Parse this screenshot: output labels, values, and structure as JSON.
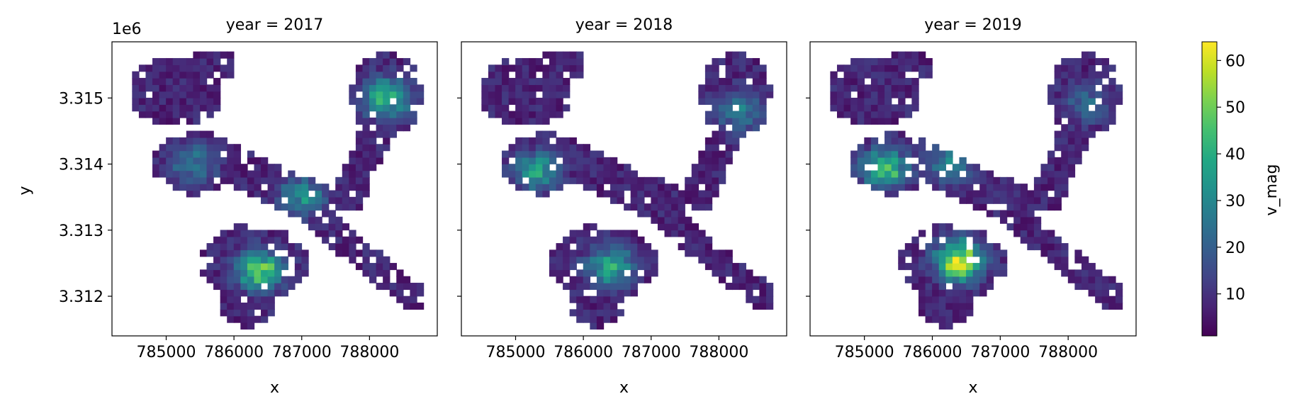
{
  "figure": {
    "offset_label": "1e6",
    "ylabel": "y",
    "xlabel": "x",
    "colorbar_label": "v_mag",
    "colorbar_ticks": [
      10,
      20,
      30,
      40,
      50,
      60
    ],
    "colorbar_range": [
      1,
      64
    ],
    "colormap": "viridis"
  },
  "chart_data": [
    {
      "type": "heatmap",
      "title": "year = 2017",
      "x_ticks": [
        "785000",
        "786000",
        "787000",
        "788000"
      ],
      "y_ticks": [
        "3.312",
        "3.313",
        "3.314",
        "3.315"
      ],
      "xlim": [
        784200,
        789000
      ],
      "ylim": [
        3311400,
        3315850
      ],
      "hotspots": [
        {
          "x": 786400,
          "y": 3312400,
          "value": 48
        },
        {
          "x": 788250,
          "y": 3315000,
          "value": 42
        },
        {
          "x": 787000,
          "y": 3313500,
          "value": 30
        },
        {
          "x": 785400,
          "y": 3314000,
          "value": 25
        }
      ]
    },
    {
      "type": "heatmap",
      "title": "year = 2018",
      "x_ticks": [
        "785000",
        "786000",
        "787000",
        "788000"
      ],
      "y_ticks": [
        "3.312",
        "3.313",
        "3.314",
        "3.315"
      ],
      "xlim": [
        784200,
        789000
      ],
      "ylim": [
        3311400,
        3315850
      ],
      "hotspots": [
        {
          "x": 786400,
          "y": 3312450,
          "value": 38
        },
        {
          "x": 785300,
          "y": 3313900,
          "value": 34
        },
        {
          "x": 788300,
          "y": 3314800,
          "value": 25
        }
      ]
    },
    {
      "type": "heatmap",
      "title": "year = 2019",
      "x_ticks": [
        "785000",
        "786000",
        "787000",
        "788000"
      ],
      "y_ticks": [
        "3.312",
        "3.313",
        "3.314",
        "3.315"
      ],
      "xlim": [
        784200,
        789000
      ],
      "ylim": [
        3311400,
        3315850
      ],
      "hotspots": [
        {
          "x": 786400,
          "y": 3312550,
          "value": 64
        },
        {
          "x": 785300,
          "y": 3313950,
          "value": 45
        },
        {
          "x": 786300,
          "y": 3314000,
          "value": 25
        },
        {
          "x": 788300,
          "y": 3314900,
          "value": 20
        }
      ]
    }
  ]
}
